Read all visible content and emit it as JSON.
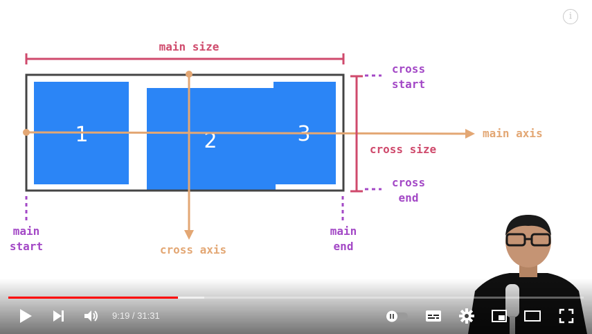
{
  "diagram": {
    "main_size": "main size",
    "cross_start": [
      "cross",
      "start"
    ],
    "cross_end": [
      "cross",
      "end"
    ],
    "main_axis": "main axis",
    "cross_size": "cross size",
    "cross_axis": "cross axis",
    "main_start": [
      "main",
      "start"
    ],
    "main_end": [
      "main",
      "end"
    ],
    "items": [
      "1",
      "2",
      "3"
    ]
  },
  "player": {
    "current_time": "9:19",
    "duration": "31:31",
    "time_display": "9:19 / 31:31",
    "progress_fraction": 0.2954,
    "buffer_fraction": 0.34
  },
  "colors": {
    "item_blue": "#2b85f6",
    "axis_orange": "#e3a774",
    "size_red": "#cf4a6c",
    "label_purple": "#a348c6",
    "container_border": "#444444",
    "progress_red": "#ff0000"
  },
  "icons": {
    "play": "play-icon",
    "next": "next-icon",
    "volume": "volume-icon",
    "autoplay": "autoplay-toggle-icon",
    "subtitles": "subtitles-icon",
    "settings": "gear-icon",
    "miniplayer": "miniplayer-icon",
    "theater": "theater-icon",
    "fullscreen": "fullscreen-icon",
    "info": "info-icon"
  }
}
